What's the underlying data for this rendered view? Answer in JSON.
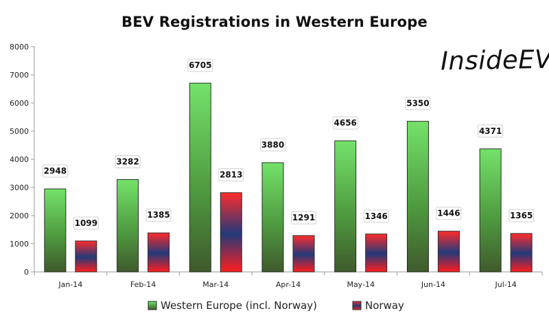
{
  "branding": {
    "logo_text": "InsideEVs"
  },
  "colors": {
    "western_europe_top": "#74e26a",
    "western_europe_mid": "#4f9b40",
    "western_europe_bottom": "#3f5a2c",
    "norway_top": "#ff2b2b",
    "norway_mid": "#233a7a",
    "norway_bottom": "#ff1e1e",
    "grid": "#d8d8d8",
    "axis": "#9a9a9a"
  },
  "chart_data": {
    "type": "bar",
    "title": "BEV Registrations in Western Europe",
    "categories": [
      "Jan-14",
      "Feb-14",
      "Mar-14",
      "Apr-14",
      "May-14",
      "Jun-14",
      "Jul-14"
    ],
    "series": [
      {
        "name": "Western Europe (incl. Norway)",
        "values": [
          2948,
          3282,
          6705,
          3880,
          4656,
          5350,
          4371
        ]
      },
      {
        "name": "Norway",
        "values": [
          1099,
          1385,
          2813,
          1291,
          1346,
          1446,
          1365
        ]
      }
    ],
    "y_ticks": [
      0,
      1000,
      2000,
      3000,
      4000,
      5000,
      6000,
      7000,
      8000
    ],
    "ylim": [
      0,
      8000
    ],
    "grid": false,
    "legend": "bottom",
    "data_labels": true
  }
}
